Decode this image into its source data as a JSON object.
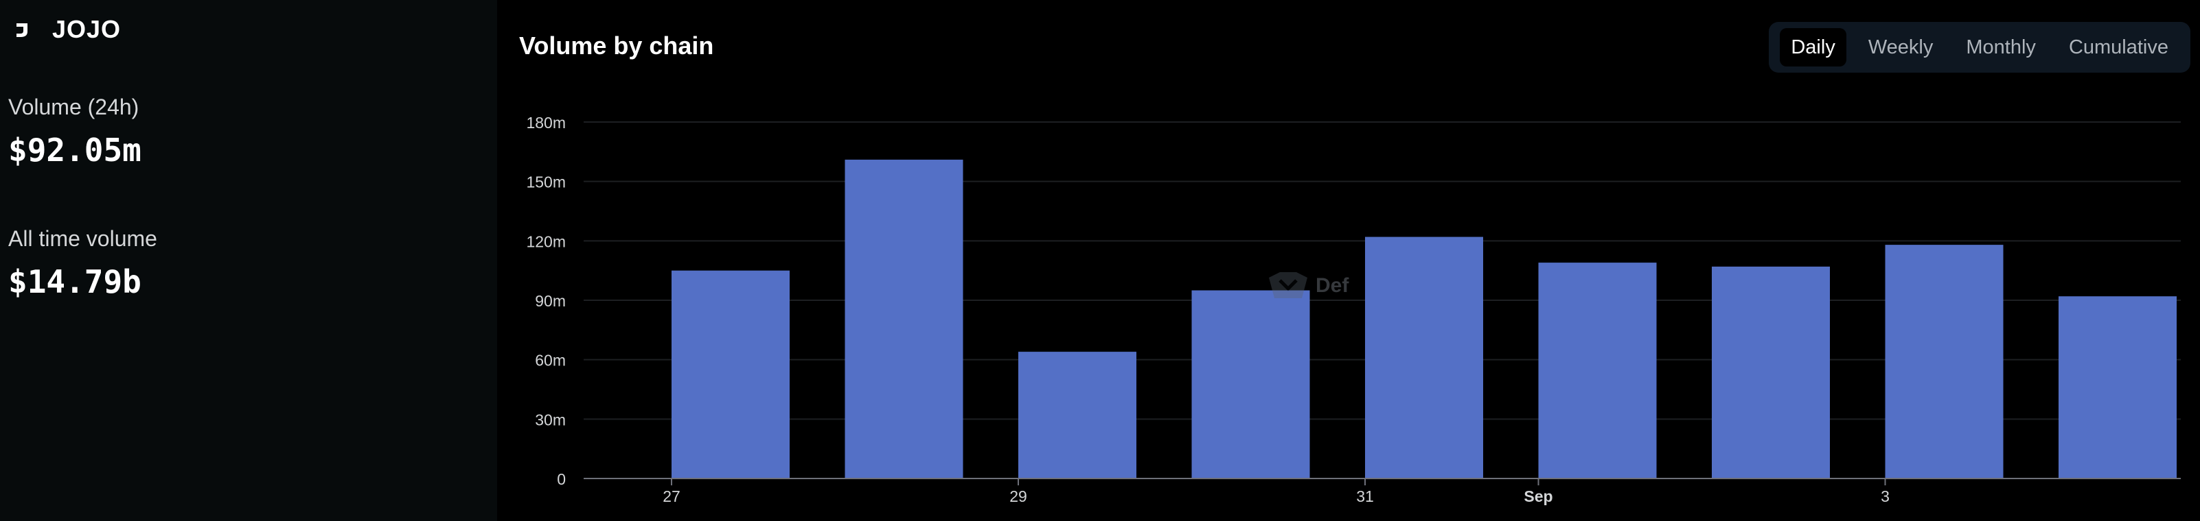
{
  "sidebar": {
    "brand_name": "JOJO",
    "stats": [
      {
        "label": "Volume (24h)",
        "value": "$92.05m"
      },
      {
        "label": "All time volume",
        "value": "$14.79b"
      }
    ]
  },
  "main": {
    "title": "Volume by chain",
    "tabs": [
      {
        "label": "Daily",
        "active": true
      },
      {
        "label": "Weekly",
        "active": false
      },
      {
        "label": "Monthly",
        "active": false
      },
      {
        "label": "Cumulative",
        "active": false
      }
    ],
    "watermark": "Def"
  },
  "colors": {
    "bar": "#5470c6",
    "grid": "#1d1f22",
    "axis_text": "#d4d6d8",
    "axis_line": "#6e7079"
  },
  "chart_data": {
    "type": "bar",
    "title": "Volume by chain",
    "xlabel": "",
    "ylabel": "",
    "categories": [
      "2025-08-27",
      "2025-08-28",
      "2025-08-29",
      "2025-08-30",
      "2025-08-31",
      "2025-09-01",
      "2025-09-02",
      "2025-09-03",
      "2025-09-04"
    ],
    "values": [
      105000000,
      161000000,
      64000000,
      95000000,
      122000000,
      109000000,
      107000000,
      118000000,
      92000000
    ],
    "x_tick_labels": [
      {
        "date": "2025-08-27",
        "label": "27",
        "bold": false
      },
      {
        "date": "2025-08-29",
        "label": "29",
        "bold": false
      },
      {
        "date": "2025-08-31",
        "label": "31",
        "bold": false
      },
      {
        "date": "2025-09-01",
        "label": "Sep",
        "bold": true
      },
      {
        "date": "2025-09-03",
        "label": "3",
        "bold": false
      }
    ],
    "y_ticks": [
      0,
      30000000,
      60000000,
      90000000,
      120000000,
      150000000,
      180000000
    ],
    "y_tick_labels": [
      "0",
      "30m",
      "60m",
      "90m",
      "120m",
      "150m",
      "180m"
    ],
    "ylim": [
      0,
      180000000
    ],
    "grid": true,
    "legend": "none"
  }
}
